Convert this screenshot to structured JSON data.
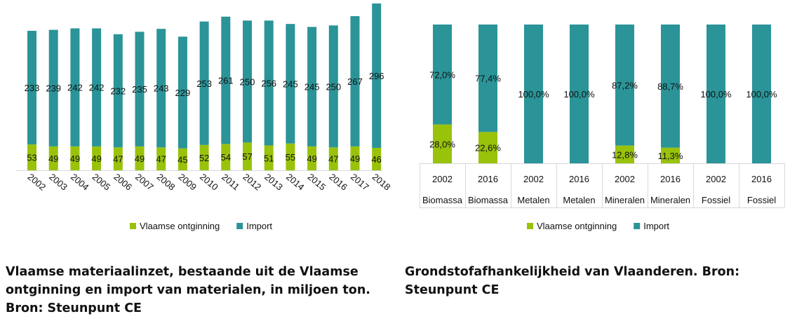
{
  "colors": {
    "green": "#99C20B",
    "teal": "#2A9498",
    "axis": "#D9D9D9",
    "text": "#111111"
  },
  "chart_data": [
    {
      "type": "bar",
      "stacked": true,
      "title": "",
      "xlabel": "",
      "ylabel": "",
      "categories": [
        "2002",
        "2003",
        "2004",
        "2005",
        "2006",
        "2007",
        "2008",
        "2009",
        "2010",
        "2011",
        "2012",
        "2013",
        "2014",
        "2015",
        "2016",
        "2017",
        "2018"
      ],
      "series": [
        {
          "name": "Vlaamse ontginning",
          "color": "#99C20B",
          "values": [
            53,
            49,
            49,
            49,
            47,
            49,
            47,
            45,
            52,
            54,
            57,
            51,
            55,
            49,
            47,
            49,
            46
          ]
        },
        {
          "name": "Import",
          "color": "#2A9498",
          "values": [
            233,
            239,
            242,
            242,
            232,
            235,
            243,
            229,
            253,
            261,
            250,
            256,
            245,
            245,
            250,
            267,
            296
          ]
        }
      ],
      "data_labels": true,
      "y_axis_visible": false,
      "grid": false,
      "legend": "bottom"
    },
    {
      "type": "bar",
      "stacked": true,
      "percent": true,
      "title": "",
      "xlabel": "",
      "ylabel": "",
      "categories": [
        {
          "year": "2002",
          "group": "Biomassa"
        },
        {
          "year": "2016",
          "group": "Biomassa"
        },
        {
          "year": "2002",
          "group": "Metalen"
        },
        {
          "year": "2016",
          "group": "Metalen"
        },
        {
          "year": "2002",
          "group": "Mineralen"
        },
        {
          "year": "2016",
          "group": "Mineralen"
        },
        {
          "year": "2002",
          "group": "Fossiel"
        },
        {
          "year": "2016",
          "group": "Fossiel"
        }
      ],
      "series": [
        {
          "name": "Vlaamse ontginning",
          "color": "#99C20B",
          "values": [
            28.0,
            22.6,
            0,
            0,
            12.8,
            11.3,
            0,
            0
          ],
          "labels": [
            "28,0%",
            "22,6%",
            "",
            "",
            "12,8%",
            "11,3%",
            "",
            ""
          ]
        },
        {
          "name": "Import",
          "color": "#2A9498",
          "values": [
            72.0,
            77.4,
            100.0,
            100.0,
            87.2,
            88.7,
            100.0,
            100.0
          ],
          "labels": [
            "72,0%",
            "77,4%",
            "100,0%",
            "100,0%",
            "87,2%",
            "88,7%",
            "100,0%",
            "100,0%"
          ]
        }
      ],
      "ylim": [
        0,
        100
      ],
      "data_labels": true,
      "y_axis_visible": false,
      "grid": false,
      "legend": "bottom"
    }
  ],
  "captions": {
    "left": "Vlaamse materiaalinzet, bestaande uit de Vlaamse ontginning en import van materialen, in miljoen ton. Bron: Steunpunt CE",
    "right": "Grondstofafhankelijkheid van Vlaanderen. Bron: Steunpunt CE"
  }
}
